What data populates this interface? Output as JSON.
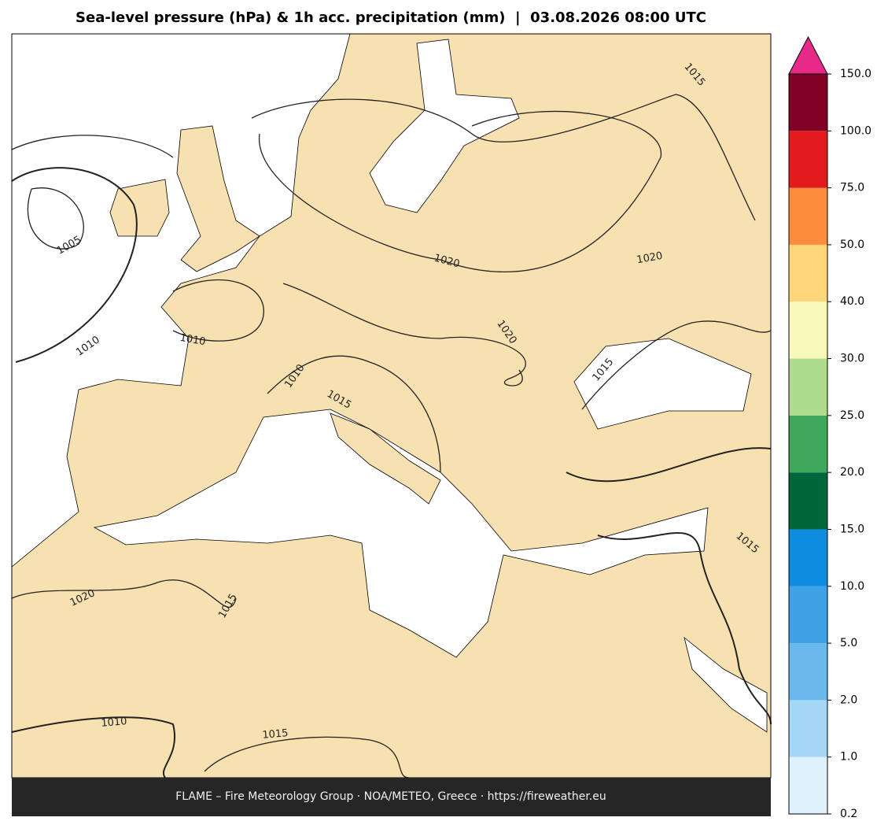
{
  "title": "Sea-level pressure (hPa) & 1h acc. precipitation (mm)  |  03.08.2026 08:00 UTC",
  "footer": "FLAME – Fire Meteorology Group · NOA/METEO, Greece · https://fireweather.eu",
  "colorbar": {
    "ticks": [
      {
        "value": 0.2,
        "label": "0.2"
      },
      {
        "value": 1,
        "label": "1.0"
      },
      {
        "value": 2,
        "label": "2.0"
      },
      {
        "value": 5,
        "label": "5.0"
      },
      {
        "value": 10,
        "label": "10.0"
      },
      {
        "value": 15,
        "label": "15.0"
      },
      {
        "value": 20,
        "label": "20.0"
      },
      {
        "value": 25,
        "label": "25.0"
      },
      {
        "value": 30,
        "label": "30.0"
      },
      {
        "value": 40,
        "label": "40.0"
      },
      {
        "value": 50,
        "label": "50.0"
      },
      {
        "value": 75,
        "label": "75.0"
      },
      {
        "value": 100,
        "label": "100.0"
      },
      {
        "value": 150,
        "label": "150.0"
      }
    ],
    "colors": [
      "#def1fc",
      "#a6d6f6",
      "#6bb9ec",
      "#3fa2e6",
      "#0e8cdf",
      "#00673a",
      "#40a85c",
      "#acdc8c",
      "#f8f9b9",
      "#fed679",
      "#fd8c3c",
      "#e31b1d",
      "#800026"
    ],
    "extend_color": "#e7298a"
  },
  "contour_labels": [
    "1005",
    "1010",
    "1010",
    "1015",
    "1020",
    "1020",
    "1020",
    "1015",
    "1010",
    "1015",
    "1020",
    "1015",
    "1010",
    "1015",
    "1015"
  ]
}
